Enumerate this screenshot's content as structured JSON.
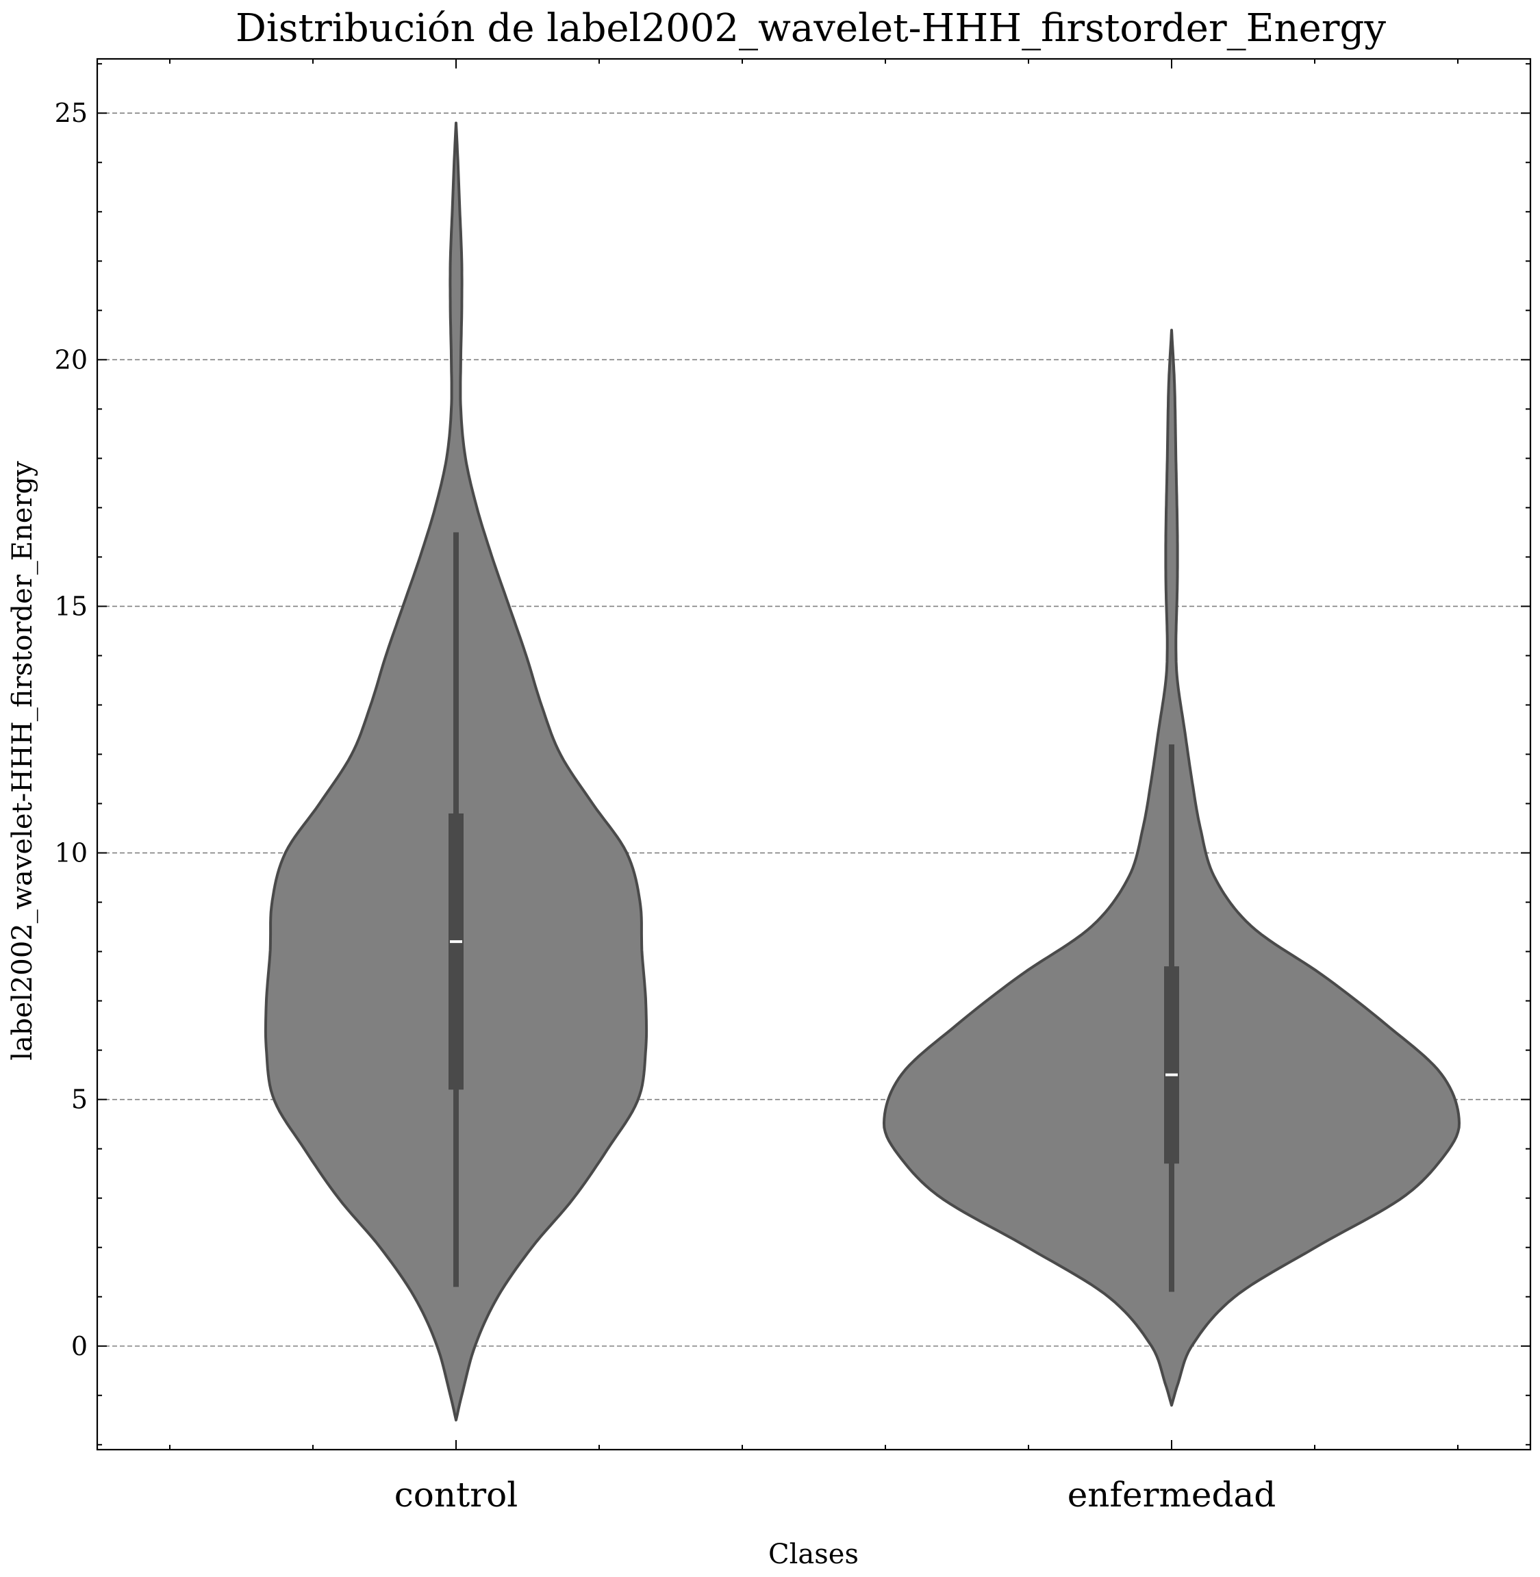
{
  "chart_data": {
    "type": "violin",
    "title": "Distribución de label2002_wavelet-HHH_firstorder_Energy",
    "xlabel": "Clases",
    "ylabel": "label2002_wavelet-HHH_firstorder_Energy",
    "categories": [
      "control",
      "enfermedad"
    ],
    "ylim": [
      -2.1,
      26.1
    ],
    "yticks": [
      0,
      5,
      10,
      15,
      20,
      25
    ],
    "ytick_labels": [
      "0",
      "5",
      "10",
      "15",
      "20",
      "25"
    ],
    "grid": "horizontal dashed",
    "colors": {
      "fill": "#808080",
      "edge": "#4a4a4a",
      "median": "#ffffff"
    },
    "violins": [
      {
        "category": "control",
        "min": -1.5,
        "max": 24.8,
        "whisker_low": 1.2,
        "whisker_high": 16.5,
        "q1": 5.2,
        "q3": 10.8,
        "median": 8.2,
        "profile": [
          [
            -1.5,
            0.0
          ],
          [
            -1.0,
            0.03
          ],
          [
            0.0,
            0.1
          ],
          [
            1.0,
            0.22
          ],
          [
            2.0,
            0.4
          ],
          [
            3.0,
            0.62
          ],
          [
            4.0,
            0.8
          ],
          [
            5.0,
            0.96
          ],
          [
            6.0,
            1.0
          ],
          [
            7.0,
            1.0
          ],
          [
            8.0,
            0.98
          ],
          [
            9.0,
            0.97
          ],
          [
            10.0,
            0.9
          ],
          [
            11.0,
            0.72
          ],
          [
            12.0,
            0.55
          ],
          [
            13.0,
            0.45
          ],
          [
            14.0,
            0.37
          ],
          [
            15.0,
            0.28
          ],
          [
            16.0,
            0.19
          ],
          [
            17.0,
            0.11
          ],
          [
            18.0,
            0.05
          ],
          [
            19.0,
            0.025
          ],
          [
            20.0,
            0.025
          ],
          [
            21.0,
            0.03
          ],
          [
            22.0,
            0.03
          ],
          [
            23.0,
            0.02
          ],
          [
            24.0,
            0.01
          ],
          [
            24.8,
            0.0
          ]
        ]
      },
      {
        "category": "enfermedad",
        "min": -1.2,
        "max": 20.6,
        "whisker_low": 1.1,
        "whisker_high": 12.2,
        "q1": 3.7,
        "q3": 7.7,
        "median": 5.5,
        "profile": [
          [
            -1.2,
            0.0
          ],
          [
            -0.8,
            0.02
          ],
          [
            0.0,
            0.07
          ],
          [
            1.0,
            0.22
          ],
          [
            2.0,
            0.5
          ],
          [
            3.0,
            0.8
          ],
          [
            3.8,
            0.94
          ],
          [
            4.5,
            1.0
          ],
          [
            5.5,
            0.94
          ],
          [
            6.5,
            0.75
          ],
          [
            7.5,
            0.53
          ],
          [
            8.5,
            0.28
          ],
          [
            9.5,
            0.15
          ],
          [
            10.5,
            0.1
          ],
          [
            11.5,
            0.07
          ],
          [
            12.5,
            0.045
          ],
          [
            13.5,
            0.02
          ],
          [
            14.2,
            0.015
          ],
          [
            15.5,
            0.02
          ],
          [
            16.5,
            0.02
          ],
          [
            18.0,
            0.015
          ],
          [
            19.5,
            0.01
          ],
          [
            20.6,
            0.0
          ]
        ]
      }
    ]
  }
}
